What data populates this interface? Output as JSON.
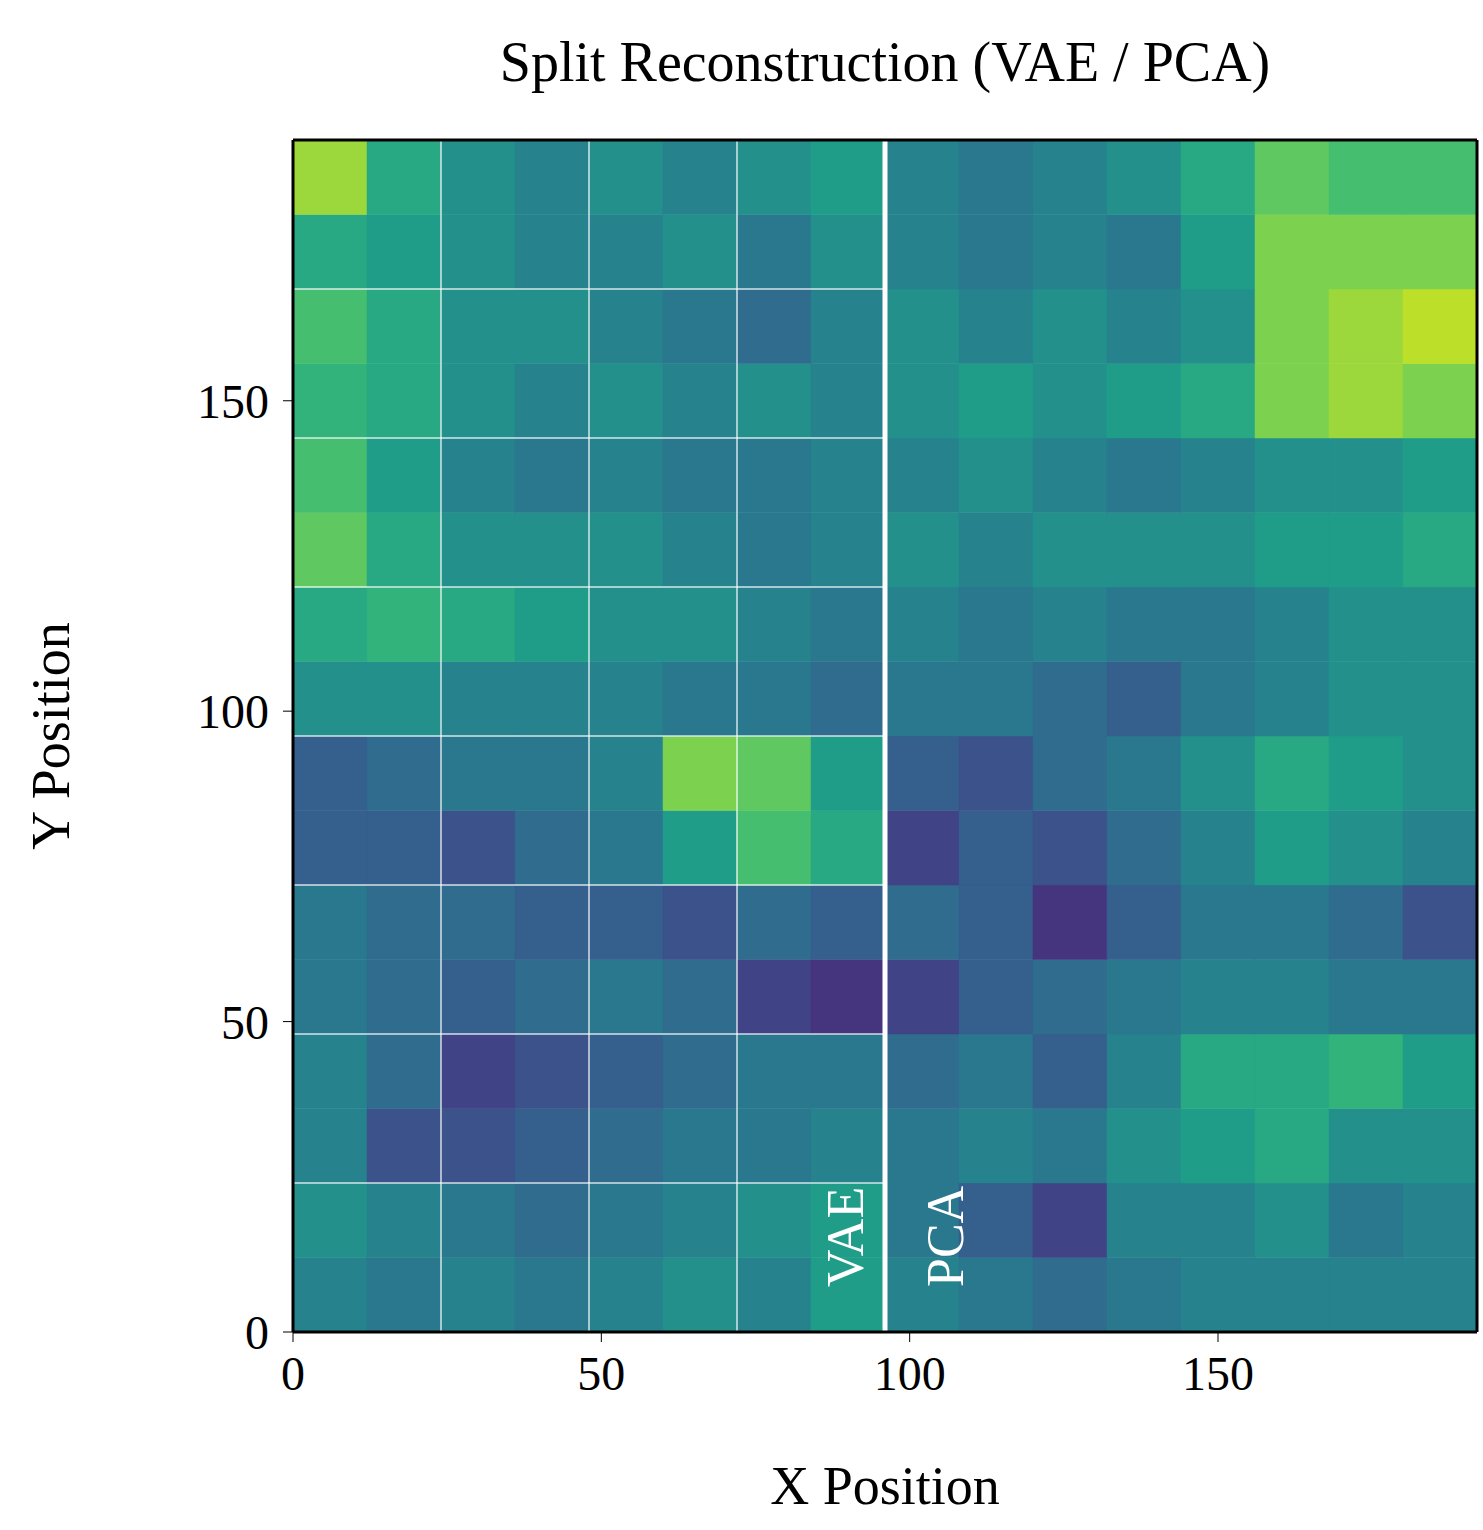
{
  "chart_data": {
    "type": "heatmap",
    "title": "Split Reconstruction (VAE / PCA)",
    "x_label": "X Position",
    "y_label": "Y Position",
    "annotations": [
      "VAE",
      "PCA"
    ],
    "xlim": [
      0,
      192
    ],
    "ylim": [
      0,
      192
    ],
    "xticks": [
      0,
      50,
      100,
      150
    ],
    "yticks": [
      0,
      50,
      100,
      150
    ],
    "split_x": 96,
    "patch_lines_x": [
      24,
      48,
      72
    ],
    "patch_lines_y": [
      24,
      48,
      72,
      96,
      120,
      144,
      168
    ],
    "x_edges": [
      0,
      12,
      24,
      36,
      48,
      60,
      72,
      84,
      96,
      108,
      120,
      132,
      144,
      156,
      168,
      180,
      192
    ],
    "y_edges": [
      0,
      12,
      24,
      36,
      48,
      60,
      72,
      84,
      96,
      108,
      120,
      132,
      144,
      156,
      168,
      180,
      192
    ],
    "clim": [
      0,
      1
    ],
    "cells": [
      [
        0.45,
        0.4,
        0.45,
        0.4,
        0.45,
        0.5,
        0.45,
        0.55,
        0.45,
        0.4,
        0.35,
        0.4,
        0.45,
        0.45,
        0.45,
        0.45
      ],
      [
        0.5,
        0.45,
        0.4,
        0.35,
        0.4,
        0.45,
        0.5,
        0.55,
        0.4,
        0.3,
        0.2,
        0.45,
        0.45,
        0.5,
        0.4,
        0.45
      ],
      [
        0.45,
        0.25,
        0.25,
        0.3,
        0.35,
        0.4,
        0.4,
        0.45,
        0.4,
        0.45,
        0.4,
        0.5,
        0.55,
        0.6,
        0.5,
        0.5
      ],
      [
        0.45,
        0.35,
        0.2,
        0.25,
        0.3,
        0.35,
        0.4,
        0.4,
        0.35,
        0.4,
        0.3,
        0.45,
        0.6,
        0.6,
        0.65,
        0.55
      ],
      [
        0.4,
        0.35,
        0.3,
        0.35,
        0.4,
        0.35,
        0.2,
        0.15,
        0.2,
        0.3,
        0.35,
        0.4,
        0.45,
        0.45,
        0.4,
        0.4
      ],
      [
        0.4,
        0.35,
        0.35,
        0.3,
        0.3,
        0.25,
        0.35,
        0.3,
        0.35,
        0.3,
        0.15,
        0.3,
        0.4,
        0.4,
        0.35,
        0.25
      ],
      [
        0.3,
        0.3,
        0.25,
        0.35,
        0.4,
        0.55,
        0.7,
        0.6,
        0.2,
        0.3,
        0.25,
        0.35,
        0.45,
        0.55,
        0.5,
        0.45
      ],
      [
        0.3,
        0.35,
        0.4,
        0.4,
        0.45,
        0.8,
        0.75,
        0.55,
        0.3,
        0.25,
        0.35,
        0.4,
        0.5,
        0.6,
        0.55,
        0.5
      ],
      [
        0.5,
        0.5,
        0.45,
        0.45,
        0.45,
        0.4,
        0.4,
        0.35,
        0.4,
        0.4,
        0.35,
        0.3,
        0.4,
        0.45,
        0.5,
        0.5
      ],
      [
        0.6,
        0.65,
        0.6,
        0.55,
        0.5,
        0.5,
        0.45,
        0.4,
        0.45,
        0.4,
        0.45,
        0.4,
        0.4,
        0.45,
        0.5,
        0.5
      ],
      [
        0.75,
        0.6,
        0.5,
        0.5,
        0.5,
        0.45,
        0.4,
        0.45,
        0.5,
        0.45,
        0.5,
        0.5,
        0.5,
        0.55,
        0.55,
        0.6
      ],
      [
        0.7,
        0.55,
        0.45,
        0.4,
        0.45,
        0.4,
        0.4,
        0.45,
        0.45,
        0.5,
        0.45,
        0.4,
        0.45,
        0.5,
        0.5,
        0.55
      ],
      [
        0.65,
        0.6,
        0.5,
        0.45,
        0.5,
        0.45,
        0.5,
        0.45,
        0.5,
        0.55,
        0.5,
        0.55,
        0.6,
        0.8,
        0.85,
        0.8
      ],
      [
        0.7,
        0.6,
        0.5,
        0.5,
        0.45,
        0.4,
        0.35,
        0.45,
        0.5,
        0.45,
        0.5,
        0.45,
        0.5,
        0.8,
        0.85,
        0.9
      ],
      [
        0.6,
        0.55,
        0.5,
        0.45,
        0.45,
        0.5,
        0.4,
        0.5,
        0.45,
        0.4,
        0.45,
        0.4,
        0.55,
        0.8,
        0.8,
        0.8
      ],
      [
        0.85,
        0.6,
        0.5,
        0.45,
        0.5,
        0.45,
        0.5,
        0.55,
        0.45,
        0.4,
        0.45,
        0.5,
        0.6,
        0.75,
        0.7,
        0.7
      ]
    ]
  }
}
